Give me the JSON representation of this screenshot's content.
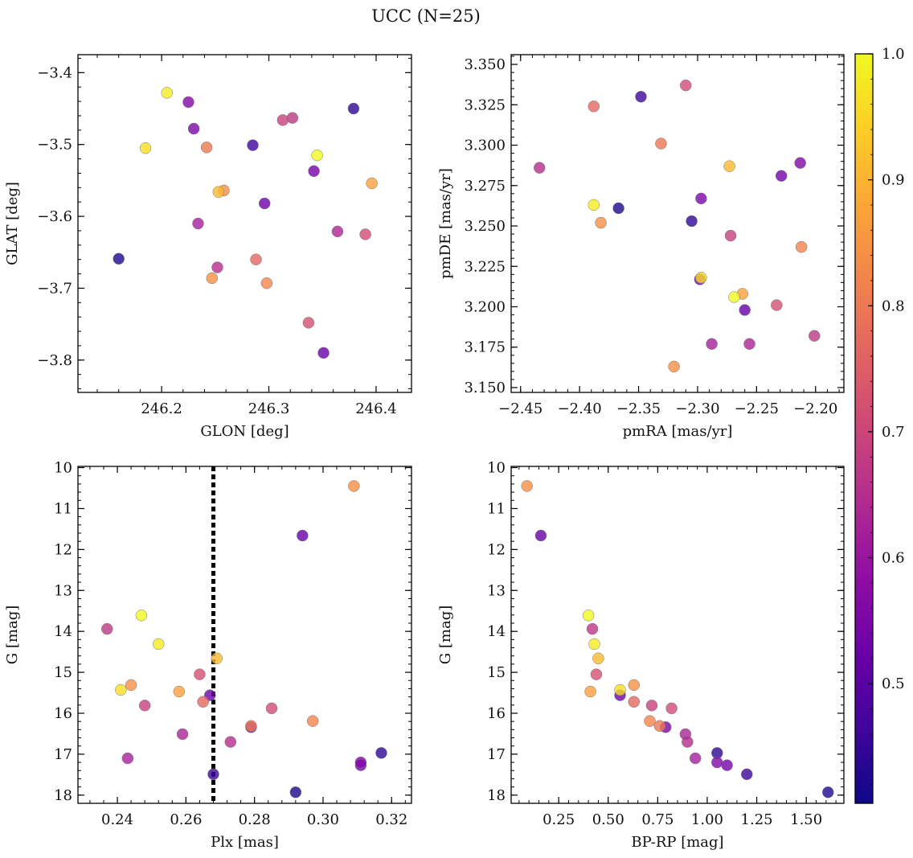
{
  "title": "UCC (N=25)",
  "chart_data": {
    "type": "scatter",
    "title": "UCC (N=25)",
    "colorbar": {
      "colormap": "plasma",
      "vmin": 0.405,
      "vmax": 1.0,
      "ticks": [
        0.5,
        0.6,
        0.7,
        0.8,
        0.9,
        1.0
      ],
      "tick_labels": [
        "0.5",
        "0.6",
        "0.7",
        "0.8",
        "0.9",
        "1.0"
      ]
    },
    "panels": [
      {
        "id": "glon_glat",
        "xlabel": "GLON [deg]",
        "ylabel": "GLAT [deg]",
        "xlim": [
          246.122,
          246.433
        ],
        "ylim": [
          -3.845,
          -3.375
        ],
        "y_inverted": false,
        "xticks": [
          246.2,
          246.3,
          246.4
        ],
        "xtick_labels": [
          "246.2",
          "246.3",
          "246.4"
        ],
        "yticks": [
          -3.4,
          -3.5,
          -3.6,
          -3.7,
          -3.8
        ],
        "ytick_labels": [
          "−3.4",
          "−3.5",
          "−3.6",
          "−3.7",
          "−3.8"
        ]
      },
      {
        "id": "pm",
        "xlabel": "pmRA [mas/yr]",
        "ylabel": "pmDE [mas/yr]",
        "xlim": [
          -2.458,
          -2.176
        ],
        "ylim": [
          3.147,
          3.356
        ],
        "y_inverted": false,
        "xticks": [
          -2.45,
          -2.4,
          -2.35,
          -2.3,
          -2.25,
          -2.2
        ],
        "xtick_labels": [
          "−2.45",
          "−2.40",
          "−2.35",
          "−2.30",
          "−2.25",
          "−2.20"
        ],
        "yticks": [
          3.15,
          3.175,
          3.2,
          3.225,
          3.25,
          3.275,
          3.3,
          3.325,
          3.35
        ],
        "ytick_labels": [
          "3.150",
          "3.175",
          "3.200",
          "3.225",
          "3.250",
          "3.275",
          "3.300",
          "3.325",
          "3.350"
        ]
      },
      {
        "id": "plx_g",
        "xlabel": "Plx [mas]",
        "ylabel": "G [mag]",
        "xlim": [
          0.2285,
          0.3258
        ],
        "ylim": [
          18.2,
          9.97
        ],
        "y_inverted": true,
        "xticks": [
          0.24,
          0.26,
          0.28,
          0.3,
          0.32
        ],
        "xtick_labels": [
          "0.24",
          "0.26",
          "0.28",
          "0.30",
          "0.32"
        ],
        "yticks": [
          10,
          11,
          12,
          13,
          14,
          15,
          16,
          17,
          18
        ],
        "ytick_labels": [
          "10",
          "11",
          "12",
          "13",
          "14",
          "15",
          "16",
          "17",
          "18"
        ],
        "vline": 0.268
      },
      {
        "id": "cmd",
        "xlabel": "BP-RP [mag]",
        "ylabel": "G [mag]",
        "xlim": [
          0.01,
          1.69
        ],
        "ylim": [
          18.2,
          9.97
        ],
        "y_inverted": true,
        "xticks": [
          0.25,
          0.5,
          0.75,
          1.0,
          1.25,
          1.5
        ],
        "xtick_labels": [
          "0.25",
          "0.50",
          "0.75",
          "1.00",
          "1.25",
          "1.50"
        ],
        "yticks": [
          10,
          11,
          12,
          13,
          14,
          15,
          16,
          17,
          18
        ],
        "ytick_labels": [
          "10",
          "11",
          "12",
          "13",
          "14",
          "15",
          "16",
          "17",
          "18"
        ]
      }
    ],
    "points_note": "per star: glon, glat, pmra, pmde, plx, g, bp_rp, p (membership probability / colour value)",
    "points": [
      {
        "glon": 246.16,
        "glat": -3.659,
        "pmra": -2.367,
        "pmde": 3.261,
        "plx": 0.292,
        "g": 17.93,
        "bp_rp": 1.61,
        "p": 0.42
      },
      {
        "glon": 246.379,
        "glat": -3.45,
        "pmra": -2.305,
        "pmde": 3.253,
        "plx": 0.317,
        "g": 16.97,
        "bp_rp": 1.05,
        "p": 0.44
      },
      {
        "glon": 246.285,
        "glat": -3.501,
        "pmra": -2.348,
        "pmde": 3.33,
        "plx": 0.268,
        "g": 17.49,
        "bp_rp": 1.2,
        "p": 0.46
      },
      {
        "glon": 246.351,
        "glat": -3.79,
        "pmra": -2.26,
        "pmde": 3.198,
        "plx": 0.294,
        "g": 11.66,
        "bp_rp": 0.16,
        "p": 0.52
      },
      {
        "glon": 246.296,
        "glat": -3.582,
        "pmra": -2.298,
        "pmde": 3.217,
        "plx": 0.267,
        "g": 15.56,
        "bp_rp": 0.56,
        "p": 0.53
      },
      {
        "glon": 246.342,
        "glat": -3.537,
        "pmra": -2.229,
        "pmde": 3.281,
        "plx": 0.311,
        "g": 17.27,
        "bp_rp": 1.1,
        "p": 0.54
      },
      {
        "glon": 246.23,
        "glat": -3.478,
        "pmra": -2.297,
        "pmde": 3.267,
        "plx": 0.279,
        "g": 16.34,
        "bp_rp": 0.79,
        "p": 0.55
      },
      {
        "glon": 246.225,
        "glat": -3.441,
        "pmra": -2.213,
        "pmde": 3.289,
        "plx": 0.311,
        "g": 17.2,
        "bp_rp": 1.05,
        "p": 0.56
      },
      {
        "glon": 246.234,
        "glat": -3.61,
        "pmra": -2.288,
        "pmde": 3.177,
        "plx": 0.243,
        "g": 17.1,
        "bp_rp": 0.94,
        "p": 0.62
      },
      {
        "glon": 246.364,
        "glat": -3.621,
        "pmra": -2.256,
        "pmde": 3.177,
        "plx": 0.259,
        "g": 16.51,
        "bp_rp": 0.89,
        "p": 0.63
      },
      {
        "glon": 246.252,
        "glat": -3.671,
        "pmra": -2.434,
        "pmde": 3.286,
        "plx": 0.273,
        "g": 16.7,
        "bp_rp": 0.9,
        "p": 0.65
      },
      {
        "glon": 246.322,
        "glat": -3.463,
        "pmra": -2.201,
        "pmde": 3.182,
        "plx": 0.237,
        "g": 13.94,
        "bp_rp": 0.42,
        "p": 0.67
      },
      {
        "glon": 246.313,
        "glat": -3.466,
        "pmra": -2.272,
        "pmde": 3.244,
        "plx": 0.248,
        "g": 15.81,
        "bp_rp": 0.72,
        "p": 0.69
      },
      {
        "glon": 246.39,
        "glat": -3.625,
        "pmra": -2.31,
        "pmde": 3.337,
        "plx": 0.285,
        "g": 15.88,
        "bp_rp": 0.82,
        "p": 0.71
      },
      {
        "glon": 246.337,
        "glat": -3.748,
        "pmra": -2.233,
        "pmde": 3.201,
        "plx": 0.264,
        "g": 15.05,
        "bp_rp": 0.44,
        "p": 0.72
      },
      {
        "glon": 246.288,
        "glat": -3.66,
        "pmra": -2.388,
        "pmde": 3.324,
        "plx": 0.265,
        "g": 15.72,
        "bp_rp": 0.63,
        "p": 0.77
      },
      {
        "glon": 246.242,
        "glat": -3.504,
        "pmra": -2.331,
        "pmde": 3.301,
        "plx": 0.279,
        "g": 16.31,
        "bp_rp": 0.76,
        "p": 0.8
      },
      {
        "glon": 246.298,
        "glat": -3.693,
        "pmra": -2.212,
        "pmde": 3.237,
        "plx": 0.297,
        "g": 16.19,
        "bp_rp": 0.71,
        "p": 0.82
      },
      {
        "glon": 246.258,
        "glat": -3.564,
        "pmra": -2.32,
        "pmde": 3.163,
        "plx": 0.244,
        "g": 15.31,
        "bp_rp": 0.63,
        "p": 0.84
      },
      {
        "glon": 246.247,
        "glat": -3.686,
        "pmra": -2.382,
        "pmde": 3.252,
        "plx": 0.309,
        "g": 10.45,
        "bp_rp": 0.09,
        "p": 0.84
      },
      {
        "glon": 246.396,
        "glat": -3.554,
        "pmra": -2.262,
        "pmde": 3.208,
        "plx": 0.258,
        "g": 15.47,
        "bp_rp": 0.41,
        "p": 0.87
      },
      {
        "glon": 246.253,
        "glat": -3.566,
        "pmra": -2.273,
        "pmde": 3.287,
        "plx": 0.269,
        "g": 14.66,
        "bp_rp": 0.45,
        "p": 0.91
      },
      {
        "glon": 246.185,
        "glat": -3.505,
        "pmra": -2.297,
        "pmde": 3.218,
        "plx": 0.241,
        "g": 15.43,
        "bp_rp": 0.56,
        "p": 0.96
      },
      {
        "glon": 246.205,
        "glat": -3.428,
        "pmra": -2.388,
        "pmde": 3.263,
        "plx": 0.252,
        "g": 14.31,
        "bp_rp": 0.43,
        "p": 0.98
      },
      {
        "glon": 246.345,
        "glat": -3.515,
        "pmra": -2.269,
        "pmde": 3.206,
        "plx": 0.247,
        "g": 13.61,
        "bp_rp": 0.4,
        "p": 1.0
      }
    ]
  }
}
